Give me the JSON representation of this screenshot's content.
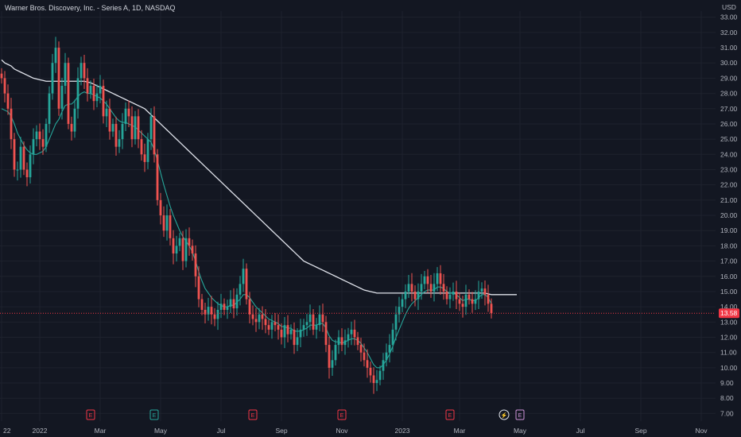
{
  "header": {
    "title": "Warner Bros. Discovery, Inc. - Series A, 1D, NASDAQ"
  },
  "price_axis": {
    "currency": "USD",
    "last_price": "13.58",
    "last_price_color": "#f23645"
  },
  "colors": {
    "background": "#131722",
    "up": "#26a69a",
    "down": "#ef5350",
    "ma_short": "#26a69a",
    "ma_long": "#e0e3eb",
    "earnings": "#f23645",
    "dividend": "#ce93d8"
  },
  "events": [
    {
      "label": "E",
      "kind": "earnings",
      "date_index": 28
    },
    {
      "label": "E",
      "kind": "earnings-green",
      "date_index": 48
    },
    {
      "label": "E",
      "kind": "earnings",
      "date_index": 79
    },
    {
      "label": "E",
      "kind": "earnings",
      "date_index": 107
    },
    {
      "label": "E",
      "kind": "earnings",
      "date_index": 141
    },
    {
      "label": "⚡",
      "kind": "split",
      "date_index": 158
    },
    {
      "label": "E",
      "kind": "dividend",
      "date_index": 163
    }
  ],
  "chart_data": {
    "type": "candlestick",
    "title": "Warner Bros. Discovery, Inc. - Series A, 1D, NASDAQ",
    "y_ticks": [
      "7.00",
      "8.00",
      "9.00",
      "10.00",
      "11.00",
      "12.00",
      "13.00",
      "14.00",
      "15.00",
      "16.00",
      "17.00",
      "18.00",
      "19.00",
      "20.00",
      "21.00",
      "22.00",
      "23.00",
      "24.00",
      "25.00",
      "26.00",
      "27.00",
      "28.00",
      "29.00",
      "30.00",
      "31.00",
      "32.00",
      "33.00"
    ],
    "ylim": [
      6.5,
      33.4
    ],
    "x_ticks": [
      {
        "label": "22",
        "pos": 0
      },
      {
        "label": "2022",
        "pos": 12
      },
      {
        "label": "Mar",
        "pos": 31
      },
      {
        "label": "May",
        "pos": 50
      },
      {
        "label": "Jul",
        "pos": 69
      },
      {
        "label": "Sep",
        "pos": 88
      },
      {
        "label": "Nov",
        "pos": 107
      },
      {
        "label": "2023",
        "pos": 126
      },
      {
        "label": "Mar",
        "pos": 144
      },
      {
        "label": "May",
        "pos": 163
      },
      {
        "label": "Jul",
        "pos": 182
      },
      {
        "label": "Sep",
        "pos": 201
      },
      {
        "label": "Nov",
        "pos": 220
      }
    ],
    "x_range": [
      0,
      225
    ],
    "last_index": 162,
    "close_series": [
      29.0,
      28.0,
      27.0,
      25.0,
      23.0,
      23.0,
      24.5,
      23.0,
      22.5,
      24.0,
      25.0,
      25.5,
      25.0,
      24.5,
      26.0,
      28.0,
      30.0,
      31.0,
      27.0,
      28.5,
      30.0,
      26.0,
      25.5,
      27.0,
      29.0,
      30.0,
      29.0,
      28.0,
      28.5,
      27.5,
      28.0,
      28.5,
      26.5,
      27.0,
      25.5,
      26.0,
      24.5,
      25.0,
      26.0,
      27.0,
      26.5,
      25.0,
      26.5,
      25.0,
      24.0,
      23.5,
      25.0,
      26.5,
      24.0,
      21.0,
      20.0,
      19.0,
      20.0,
      18.5,
      17.5,
      18.0,
      18.5,
      17.0,
      18.5,
      18.0,
      17.5,
      16.0,
      14.5,
      13.8,
      13.5,
      14.0,
      13.5,
      13.2,
      13.8,
      14.2,
      13.8,
      14.0,
      14.5,
      13.9,
      14.8,
      15.5,
      16.5,
      14.5,
      13.5,
      13.2,
      13.0,
      13.5,
      13.2,
      12.8,
      12.5,
      13.0,
      12.8,
      12.5,
      12.0,
      12.8,
      12.2,
      12.5,
      11.5,
      12.0,
      12.5,
      12.8,
      13.0,
      13.5,
      12.5,
      12.8,
      13.5,
      13.0,
      11.5,
      10.0,
      10.5,
      11.5,
      12.0,
      11.5,
      11.8,
      12.2,
      12.5,
      12.0,
      11.5,
      11.0,
      10.5,
      10.0,
      9.5,
      9.0,
      9.2,
      9.8,
      10.5,
      11.0,
      11.5,
      12.5,
      13.5,
      14.0,
      14.5,
      15.0,
      15.5,
      15.0,
      14.5,
      15.0,
      15.5,
      16.0,
      15.5,
      15.0,
      15.5,
      16.2,
      15.5,
      15.0,
      14.5,
      14.8,
      15.0,
      14.5,
      14.2,
      14.0,
      14.8,
      14.5,
      14.2,
      14.5,
      15.0,
      15.2,
      14.8,
      14.2,
      13.58
    ],
    "sma_short": [
      27.0,
      26.9,
      26.8,
      26.5,
      26.0,
      25.4,
      25.0,
      24.6,
      24.3,
      24.1,
      24.0,
      24.0,
      24.1,
      24.2,
      24.5,
      25.0,
      25.5,
      26.0,
      26.3,
      26.8,
      27.2,
      27.3,
      27.3,
      27.5,
      27.8,
      28.0,
      28.1,
      28.0,
      28.0,
      27.9,
      27.8,
      27.7,
      27.5,
      27.3,
      27.0,
      26.7,
      26.4,
      26.2,
      26.1,
      26.1,
      26.0,
      25.9,
      25.8,
      25.6,
      25.4,
      25.2,
      25.0,
      24.8,
      24.3,
      23.6,
      22.8,
      22.0,
      21.3,
      20.6,
      20.0,
      19.5,
      19.0,
      18.6,
      18.3,
      18.0,
      17.6,
      17.0,
      16.3,
      15.7,
      15.2,
      14.9,
      14.6,
      14.4,
      14.2,
      14.1,
      14.0,
      14.0,
      14.1,
      14.1,
      14.3,
      14.5,
      14.8,
      14.8,
      14.6,
      14.3,
      14.0,
      13.8,
      13.6,
      13.4,
      13.2,
      13.1,
      13.0,
      12.9,
      12.7,
      12.7,
      12.6,
      12.6,
      12.4,
      12.4,
      12.4,
      12.5,
      12.6,
      12.8,
      12.8,
      12.8,
      12.9,
      12.9,
      12.6,
      12.1,
      11.8,
      11.7,
      11.7,
      11.6,
      11.7,
      11.8,
      11.9,
      11.9,
      11.8,
      11.6,
      11.3,
      11.0,
      10.6,
      10.2,
      10.0,
      10.0,
      10.2,
      10.5,
      10.9,
      11.4,
      12.0,
      12.5,
      13.0,
      13.5,
      13.9,
      14.2,
      14.4,
      14.6,
      14.8,
      15.0,
      15.1,
      15.1,
      15.1,
      15.3,
      15.3,
      15.2,
      15.0,
      14.9,
      14.9,
      14.8,
      14.6,
      14.4,
      14.5,
      14.5,
      14.4,
      14.4,
      14.6,
      14.8,
      14.8,
      14.6,
      14.2
    ],
    "sma_long": [
      30.2,
      30.0,
      29.9,
      29.8,
      29.6,
      29.5,
      29.4,
      29.3,
      29.2,
      29.1,
      29.0,
      28.95,
      28.9,
      28.85,
      28.8,
      28.8,
      28.8,
      28.8,
      28.8,
      28.8,
      28.8,
      28.8,
      28.8,
      28.8,
      28.8,
      28.8,
      28.8,
      28.75,
      28.7,
      28.6,
      28.5,
      28.4,
      28.3,
      28.2,
      28.1,
      28.0,
      27.9,
      27.8,
      27.7,
      27.6,
      27.5,
      27.4,
      27.3,
      27.2,
      27.1,
      27.0,
      26.8,
      26.6,
      26.4,
      26.2,
      26.0,
      25.8,
      25.6,
      25.4,
      25.2,
      25.0,
      24.8,
      24.6,
      24.4,
      24.2,
      24.0,
      23.8,
      23.6,
      23.4,
      23.2,
      23.0,
      22.8,
      22.6,
      22.4,
      22.2,
      22.0,
      21.8,
      21.6,
      21.4,
      21.2,
      21.0,
      20.8,
      20.6,
      20.4,
      20.2,
      20.0,
      19.8,
      19.6,
      19.4,
      19.2,
      19.0,
      18.8,
      18.6,
      18.4,
      18.2,
      18.0,
      17.8,
      17.6,
      17.4,
      17.2,
      17.0,
      16.9,
      16.8,
      16.7,
      16.6,
      16.5,
      16.4,
      16.3,
      16.2,
      16.1,
      16.0,
      15.9,
      15.8,
      15.7,
      15.6,
      15.5,
      15.4,
      15.3,
      15.2,
      15.1,
      15.05,
      15.0,
      14.95,
      14.9,
      14.9,
      14.9,
      14.9,
      14.9,
      14.9,
      14.9,
      14.9,
      14.9,
      14.9,
      14.9,
      14.9,
      14.9,
      14.9,
      14.9,
      14.9,
      14.9,
      14.9,
      14.9,
      14.9,
      14.9,
      14.9,
      14.9,
      14.9,
      14.9,
      14.9,
      14.9,
      14.9,
      14.9,
      14.9,
      14.9,
      14.9,
      14.9,
      14.9,
      14.9,
      14.85,
      14.8,
      14.8,
      14.8,
      14.8,
      14.8,
      14.8,
      14.8,
      14.8,
      14.8
    ]
  }
}
